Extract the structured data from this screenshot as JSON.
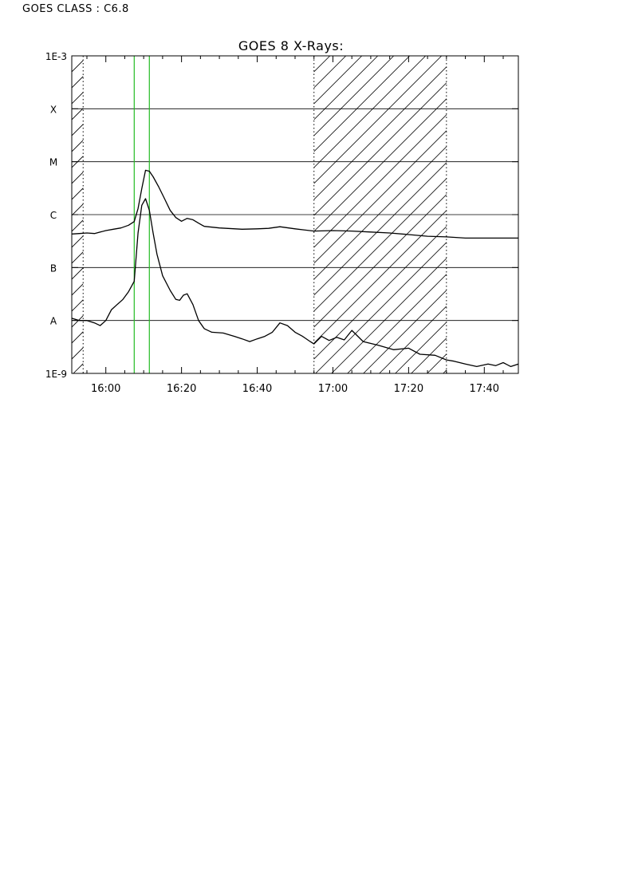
{
  "header": {
    "goes_class_label": "GOES CLASS : C6.8"
  },
  "chart_data": {
    "type": "line",
    "title": "GOES 8 X-Rays:",
    "xlabel": "",
    "ylabel": "",
    "x_unit": "minutes after 15:00 UT",
    "xlim": [
      51,
      169
    ],
    "ylim": [
      1e-09,
      0.001
    ],
    "y_scale": "log",
    "x_tick_values": [
      60,
      80,
      100,
      120,
      140,
      160
    ],
    "x_tick_labels": [
      "16:00",
      "16:20",
      "16:40",
      "17:00",
      "17:20",
      "17:40"
    ],
    "y_tick_labels": [
      {
        "label": "1E-3",
        "value": 0.001
      },
      {
        "label": "X",
        "value": 0.0001
      },
      {
        "label": "M",
        "value": 1e-05
      },
      {
        "label": "C",
        "value": 1e-06
      },
      {
        "label": "B",
        "value": 1e-07
      },
      {
        "label": "A",
        "value": 1e-08
      },
      {
        "label": "1E-9",
        "value": 1e-09
      }
    ],
    "class_gridlines": [
      0.0001,
      1e-05,
      1e-06,
      1e-07,
      1e-08
    ],
    "shaded_intervals": [
      [
        51,
        54
      ],
      [
        115,
        150
      ]
    ],
    "event_markers": [
      67.5,
      71.5
    ],
    "series": [
      {
        "color": "#000000",
        "x": [
          51,
          53,
          55,
          57,
          60,
          62,
          64,
          66,
          67.5,
          68.5,
          69.5,
          70.5,
          71.5,
          72.5,
          74,
          75.5,
          77,
          78.5,
          80,
          81.5,
          83,
          84.5,
          86,
          90,
          96,
          100,
          103,
          106,
          110,
          115,
          120,
          125,
          130,
          135,
          140,
          145,
          150,
          155,
          160,
          165,
          169
        ],
        "y": [
          4.3e-07,
          4.4e-07,
          4.5e-07,
          4.4e-07,
          5e-07,
          5.3e-07,
          5.6e-07,
          6.3e-07,
          7.4e-07,
          1.3e-06,
          3.1e-06,
          6.9e-06,
          6.6e-06,
          5.2e-06,
          3.3e-06,
          2e-06,
          1.2e-06,
          8.8e-07,
          7.5e-07,
          8.5e-07,
          8e-07,
          6.9e-07,
          6e-07,
          5.6e-07,
          5.3e-07,
          5.4e-07,
          5.5e-07,
          5.9e-07,
          5.4e-07,
          4.9e-07,
          5e-07,
          4.9e-07,
          4.7e-07,
          4.5e-07,
          4.2e-07,
          3.9e-07,
          3.8e-07,
          3.6e-07,
          3.6e-07,
          3.6e-07,
          3.6e-07
        ]
      },
      {
        "color": "#000000",
        "x": [
          51,
          53,
          55,
          57,
          58.5,
          60,
          61.5,
          63,
          64.5,
          66,
          67.5,
          68.5,
          69.5,
          70.5,
          71.5,
          72.5,
          73.5,
          75,
          77,
          78.5,
          79.5,
          80.5,
          81.5,
          83,
          84.5,
          86,
          88,
          91,
          94,
          96,
          98,
          100,
          102,
          104,
          106,
          108,
          110,
          112,
          114,
          115,
          117,
          119,
          121,
          123,
          125,
          128,
          132,
          136,
          140,
          143,
          147,
          150,
          152,
          155,
          158,
          161,
          163,
          165,
          167,
          169
        ],
        "y": [
          1.1e-08,
          1e-08,
          1e-08,
          9e-09,
          8e-09,
          1e-08,
          1.6e-08,
          2e-08,
          2.5e-08,
          3.5e-08,
          5.5e-08,
          4.5e-07,
          1.5e-06,
          2e-06,
          1.2e-06,
          4.5e-07,
          1.8e-07,
          7e-08,
          3.7e-08,
          2.5e-08,
          2.4e-08,
          3e-08,
          3.2e-08,
          2e-08,
          1e-08,
          7e-09,
          6e-09,
          5.8e-09,
          5e-09,
          4.5e-09,
          4e-09,
          4.5e-09,
          5e-09,
          6e-09,
          9e-09,
          8e-09,
          6e-09,
          5e-09,
          4e-09,
          3.6e-09,
          5e-09,
          4.2e-09,
          4.8e-09,
          4.3e-09,
          6.5e-09,
          4e-09,
          3.4e-09,
          2.8e-09,
          3e-09,
          2.3e-09,
          2.2e-09,
          1.8e-09,
          1.7e-09,
          1.5e-09,
          1.35e-09,
          1.5e-09,
          1.4e-09,
          1.6e-09,
          1.35e-09,
          1.5e-09
        ]
      }
    ]
  }
}
